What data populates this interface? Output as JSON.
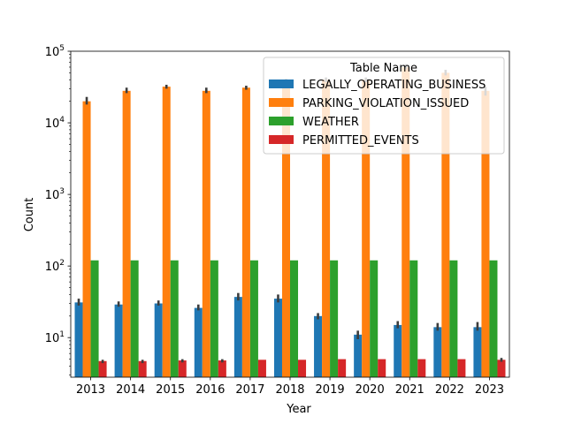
{
  "chart_data": {
    "type": "bar",
    "xlabel": "Year",
    "ylabel": "Count",
    "yscale": "log",
    "ylim": [
      2.8,
      100000
    ],
    "yticks": [
      {
        "value": 10,
        "base": "10",
        "exp": "1"
      },
      {
        "value": 100,
        "base": "10",
        "exp": "2"
      },
      {
        "value": 1000,
        "base": "10",
        "exp": "3"
      },
      {
        "value": 10000,
        "base": "10",
        "exp": "4"
      },
      {
        "value": 100000,
        "base": "10",
        "exp": "5"
      }
    ],
    "categories": [
      "2013",
      "2014",
      "2015",
      "2016",
      "2017",
      "2018",
      "2019",
      "2020",
      "2021",
      "2022",
      "2023"
    ],
    "legend": {
      "title": "Table Name",
      "placement": "upper right"
    },
    "series": [
      {
        "name": "LEGALLY_OPERATING_BUSINESS",
        "color": "#1f77b4",
        "values": [
          31,
          29,
          30,
          26,
          37,
          35,
          20,
          11,
          15,
          14,
          14
        ],
        "err_low": [
          28,
          27,
          28,
          24,
          33,
          31,
          18,
          9.5,
          13.5,
          12.5,
          12.5
        ],
        "err_high": [
          35,
          32,
          33,
          29,
          42,
          40,
          22,
          12.5,
          17,
          16,
          16.5
        ]
      },
      {
        "name": "PARKING_VIOLATION_ISSUED",
        "color": "#ff7f0e",
        "values": [
          20000,
          28000,
          32000,
          28000,
          31000,
          38000,
          40000,
          40000,
          60000,
          50000,
          28000
        ],
        "err_low": [
          18000,
          26000,
          30000,
          26000,
          29000,
          35000,
          37000,
          37000,
          56000,
          46000,
          24000
        ],
        "err_high": [
          23000,
          31000,
          34000,
          31000,
          33000,
          41000,
          43000,
          43000,
          66000,
          55000,
          32000
        ]
      },
      {
        "name": "WEATHER",
        "color": "#2ca02c",
        "values": [
          120,
          120,
          120,
          120,
          120,
          120,
          120,
          120,
          120,
          120,
          120
        ]
      },
      {
        "name": "PERMITTED_EVENTS",
        "color": "#d62728",
        "values": [
          4.7,
          4.7,
          4.8,
          4.8,
          4.9,
          4.9,
          5,
          5,
          5,
          5,
          4.9
        ],
        "err_low": [
          4.4,
          4.4,
          4.5,
          4.5,
          4.9,
          4.9,
          5,
          5,
          5,
          5,
          4.6
        ],
        "err_high": [
          4.9,
          4.9,
          5.0,
          5.0,
          4.9,
          4.9,
          5,
          5,
          5,
          5,
          5.2
        ]
      }
    ]
  }
}
